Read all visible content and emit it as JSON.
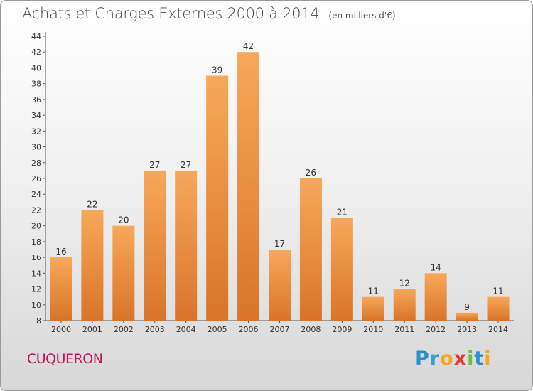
{
  "header": {
    "title": "Achats et Charges Externes 2000 à 2014",
    "unit": "(en milliers d'€)"
  },
  "footer": {
    "commune": "CUQUERON",
    "logo_text": "Proxiti"
  },
  "colors": {
    "bar_top": "#f7a85a",
    "bar_bottom": "#d9742a",
    "commune_text": "#c2185b"
  },
  "chart_data": {
    "type": "bar",
    "title": "Achats et Charges Externes 2000 à 2014",
    "subtitle": "(en milliers d'€)",
    "xlabel": "",
    "ylabel": "",
    "categories": [
      "2000",
      "2001",
      "2002",
      "2003",
      "2004",
      "2005",
      "2006",
      "2007",
      "2008",
      "2009",
      "2010",
      "2011",
      "2012",
      "2013",
      "2014"
    ],
    "values": [
      16,
      22,
      20,
      27,
      27,
      39,
      42,
      17,
      26,
      21,
      11,
      12,
      14,
      9,
      11
    ],
    "ylim": [
      8,
      44
    ],
    "yticks": [
      8,
      10,
      12,
      14,
      16,
      18,
      20,
      22,
      24,
      26,
      28,
      30,
      32,
      34,
      36,
      38,
      40,
      42,
      44
    ],
    "grid": false,
    "legend": "none"
  }
}
